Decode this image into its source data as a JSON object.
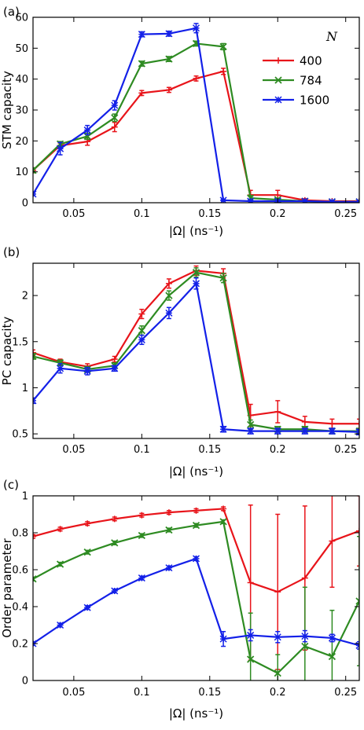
{
  "chart_data": [
    {
      "panel_label": "(a)",
      "type": "line",
      "xlabel": "|Ω| (ns⁻¹)",
      "ylabel": "STM capacity",
      "xlim": [
        0.02,
        0.26
      ],
      "ylim": [
        0,
        60
      ],
      "xticks": [
        0.05,
        0.1,
        0.15,
        0.2,
        0.25
      ],
      "xtick_labels": [
        "0.05",
        "0.1",
        "0.15",
        "0.2",
        "0.25"
      ],
      "yticks": [
        0,
        10,
        20,
        30,
        40,
        50,
        60
      ],
      "ytick_labels": [
        "0",
        "10",
        "20",
        "30",
        "40",
        "50",
        "60"
      ],
      "x": [
        0.02,
        0.04,
        0.06,
        0.08,
        0.1,
        0.12,
        0.14,
        0.16,
        0.18,
        0.2,
        0.22,
        0.24,
        0.26
      ],
      "legend": {
        "title": "N",
        "placement": "top-right"
      },
      "series": [
        {
          "name": "400",
          "color": "#e8141a",
          "marker": "plus",
          "values": [
            10.5,
            18.5,
            19.8,
            24.5,
            35.5,
            36.5,
            40.2,
            42.5,
            2.5,
            2.5,
            0.8,
            0.5,
            0.5
          ],
          "err": [
            0.8,
            0.8,
            1.2,
            1.5,
            0.8,
            0.8,
            0.8,
            1.0,
            1.5,
            1.5,
            0.5,
            0.3,
            0.3
          ]
        },
        {
          "name": "784",
          "color": "#2e8b22",
          "marker": "x",
          "values": [
            10.5,
            19.0,
            21.5,
            27.5,
            45.0,
            46.5,
            51.5,
            50.5,
            1.5,
            1.0,
            0.5,
            0.3,
            0.3
          ],
          "err": [
            0.8,
            0.8,
            1.0,
            1.2,
            0.8,
            0.8,
            0.8,
            1.0,
            0.8,
            0.5,
            0.3,
            0.3,
            0.3
          ]
        },
        {
          "name": "1600",
          "color": "#1320e8",
          "marker": "star",
          "values": [
            2.8,
            17.5,
            23.5,
            31.5,
            54.5,
            54.7,
            56.5,
            0.8,
            0.5,
            0.5,
            0.5,
            0.3,
            0.3
          ],
          "err": [
            0.5,
            2.0,
            1.5,
            1.5,
            0.8,
            0.8,
            1.5,
            0.3,
            0.3,
            0.3,
            0.3,
            0.3,
            0.3
          ]
        }
      ]
    },
    {
      "panel_label": "(b)",
      "type": "line",
      "xlabel": "|Ω| (ns⁻¹)",
      "ylabel": "PC capacity",
      "xlim": [
        0.02,
        0.26
      ],
      "ylim": [
        0.45,
        2.35
      ],
      "xticks": [
        0.05,
        0.1,
        0.15,
        0.2,
        0.25
      ],
      "xtick_labels": [
        "0.05",
        "0.1",
        "0.15",
        "0.2",
        "0.25"
      ],
      "yticks": [
        0.5,
        1,
        1.5,
        2
      ],
      "ytick_labels": [
        "0.5",
        "1",
        "1.5",
        "2"
      ],
      "x": [
        0.02,
        0.04,
        0.06,
        0.08,
        0.1,
        0.12,
        0.14,
        0.16,
        0.18,
        0.2,
        0.22,
        0.24,
        0.26
      ],
      "series": [
        {
          "name": "400",
          "color": "#e8141a",
          "marker": "plus",
          "values": [
            1.38,
            1.28,
            1.23,
            1.31,
            1.8,
            2.13,
            2.27,
            2.24,
            0.7,
            0.74,
            0.63,
            0.61,
            0.61
          ],
          "err": [
            0.03,
            0.03,
            0.03,
            0.03,
            0.05,
            0.05,
            0.05,
            0.05,
            0.12,
            0.12,
            0.06,
            0.05,
            0.05
          ]
        },
        {
          "name": "784",
          "color": "#2e8b22",
          "marker": "x",
          "values": [
            1.34,
            1.27,
            1.2,
            1.24,
            1.62,
            2.0,
            2.25,
            2.19,
            0.6,
            0.55,
            0.55,
            0.53,
            0.53
          ],
          "err": [
            0.03,
            0.03,
            0.03,
            0.03,
            0.05,
            0.05,
            0.05,
            0.05,
            0.05,
            0.03,
            0.03,
            0.03,
            0.03
          ]
        },
        {
          "name": "1600",
          "color": "#1320e8",
          "marker": "star",
          "values": [
            0.86,
            1.21,
            1.18,
            1.21,
            1.52,
            1.81,
            2.13,
            0.55,
            0.53,
            0.53,
            0.53,
            0.53,
            0.52
          ],
          "err": [
            0.03,
            0.05,
            0.04,
            0.03,
            0.05,
            0.06,
            0.06,
            0.03,
            0.03,
            0.03,
            0.03,
            0.03,
            0.03
          ]
        }
      ]
    },
    {
      "panel_label": "(c)",
      "type": "line",
      "xlabel": "|Ω| (ns⁻¹)",
      "ylabel": "Order parameter",
      "xlim": [
        0.02,
        0.26
      ],
      "ylim": [
        0,
        1
      ],
      "xticks": [
        0.05,
        0.1,
        0.15,
        0.2,
        0.25
      ],
      "xtick_labels": [
        "0.05",
        "0.1",
        "0.15",
        "0.2",
        "0.25"
      ],
      "yticks": [
        0,
        0.2,
        0.4,
        0.6,
        0.8,
        1
      ],
      "ytick_labels": [
        "0",
        "0.2",
        "0.4",
        "0.6",
        "0.8",
        "1"
      ],
      "x": [
        0.02,
        0.04,
        0.06,
        0.08,
        0.1,
        0.12,
        0.14,
        0.16,
        0.18,
        0.2,
        0.22,
        0.24,
        0.26
      ],
      "series": [
        {
          "name": "400",
          "color": "#e8141a",
          "marker": "plus",
          "values": [
            0.78,
            0.82,
            0.85,
            0.875,
            0.895,
            0.91,
            0.92,
            0.93,
            0.53,
            0.48,
            0.555,
            0.755,
            0.81
          ],
          "err": [
            0.01,
            0.01,
            0.01,
            0.01,
            0.01,
            0.01,
            0.01,
            0.01,
            0.42,
            0.42,
            0.39,
            0.25,
            0.19
          ]
        },
        {
          "name": "784",
          "color": "#2e8b22",
          "marker": "x",
          "values": [
            0.55,
            0.63,
            0.695,
            0.745,
            0.785,
            0.815,
            0.84,
            0.86,
            0.115,
            0.04,
            0.185,
            0.13,
            0.43
          ],
          "err": [
            0.01,
            0.01,
            0.01,
            0.01,
            0.01,
            0.01,
            0.01,
            0.01,
            0.25,
            0.1,
            0.32,
            0.25,
            0.35
          ]
        },
        {
          "name": "1600",
          "color": "#1320e8",
          "marker": "star",
          "values": [
            0.2,
            0.3,
            0.395,
            0.485,
            0.555,
            0.61,
            0.66,
            0.225,
            0.245,
            0.235,
            0.24,
            0.23,
            0.19
          ],
          "err": [
            0.01,
            0.01,
            0.01,
            0.01,
            0.01,
            0.01,
            0.01,
            0.04,
            0.03,
            0.03,
            0.03,
            0.02,
            0.02
          ]
        }
      ]
    }
  ]
}
